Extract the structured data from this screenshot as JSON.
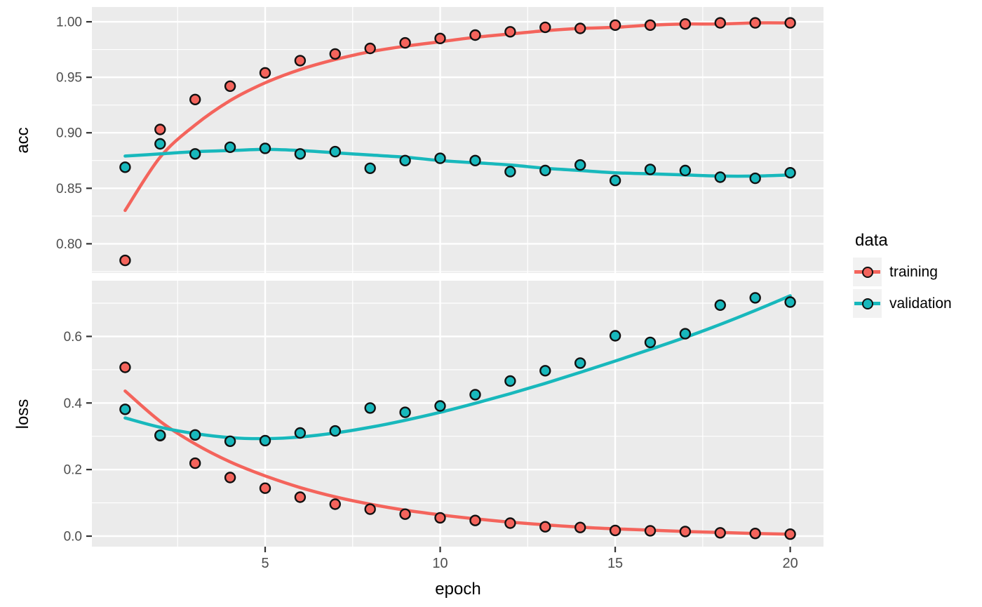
{
  "chart_data": {
    "type": "scatter",
    "description": "Keras-style training history: points with loess smooth lines, faceted into acc (top) and loss (bottom) panels",
    "xlabel": "epoch",
    "x": [
      1,
      2,
      3,
      4,
      5,
      6,
      7,
      8,
      9,
      10,
      11,
      12,
      13,
      14,
      15,
      16,
      17,
      18,
      19,
      20
    ],
    "x_domain": [
      0.05,
      20.95
    ],
    "x_ticks": {
      "values": [
        5,
        10,
        15,
        20
      ],
      "labels": [
        "5",
        "10",
        "15",
        "20"
      ]
    },
    "legend": {
      "title": "data",
      "position": "right",
      "entries": [
        {
          "name": "training",
          "label": "training",
          "color": "#F4645C"
        },
        {
          "name": "validation",
          "label": "validation",
          "color": "#18B8BC"
        }
      ]
    },
    "style": {
      "panel_bg": "#EBEBEB",
      "grid_color": "#FFFFFF",
      "tick_label_color": "#4D4D4D",
      "tick_mark_color": "#333333",
      "point_stroke": "#101010",
      "legend_key_bg": "#F2F2F2",
      "grid_on": true
    },
    "panels": [
      {
        "metric": "acc",
        "ylabel": "acc",
        "y_domain": [
          0.7737,
          1.0133
        ],
        "y_ticks": {
          "values": [
            0.8,
            0.85,
            0.9,
            0.95,
            1.0
          ],
          "labels": [
            "0.80",
            "0.85",
            "0.90",
            "0.95",
            "1.00"
          ]
        },
        "series": [
          {
            "name": "training",
            "points": [
              0.785,
              0.903,
              0.93,
              0.942,
              0.954,
              0.965,
              0.971,
              0.976,
              0.981,
              0.985,
              0.988,
              0.991,
              0.995,
              0.994,
              0.997,
              0.997,
              0.998,
              0.999,
              0.999,
              0.999
            ],
            "smooth": [
              0.83,
              0.878,
              0.907,
              0.929,
              0.945,
              0.957,
              0.966,
              0.973,
              0.978,
              0.982,
              0.986,
              0.989,
              0.992,
              0.994,
              0.995,
              0.997,
              0.998,
              0.998,
              0.999,
              0.999
            ]
          },
          {
            "name": "validation",
            "points": [
              0.869,
              0.89,
              0.881,
              0.887,
              0.886,
              0.881,
              0.883,
              0.868,
              0.875,
              0.877,
              0.875,
              0.865,
              0.866,
              0.871,
              0.857,
              0.867,
              0.866,
              0.86,
              0.859,
              0.864
            ],
            "smooth": [
              0.879,
              0.881,
              0.883,
              0.884,
              0.885,
              0.884,
              0.882,
              0.88,
              0.878,
              0.875,
              0.873,
              0.871,
              0.868,
              0.866,
              0.864,
              0.863,
              0.862,
              0.861,
              0.861,
              0.862
            ]
          }
        ]
      },
      {
        "metric": "loss",
        "ylabel": "loss",
        "y_domain": [
          -0.0316,
          0.7674
        ],
        "y_ticks": {
          "values": [
            0.0,
            0.2,
            0.4,
            0.6
          ],
          "labels": [
            "0.0",
            "0.2",
            "0.4",
            "0.6"
          ]
        },
        "series": [
          {
            "name": "training",
            "points": [
              0.507,
              0.302,
              0.219,
              0.176,
              0.144,
              0.117,
              0.096,
              0.081,
              0.066,
              0.055,
              0.047,
              0.039,
              0.028,
              0.026,
              0.017,
              0.016,
              0.014,
              0.01,
              0.008,
              0.006
            ],
            "smooth": [
              0.436,
              0.345,
              0.277,
              0.223,
              0.181,
              0.146,
              0.118,
              0.096,
              0.078,
              0.064,
              0.052,
              0.042,
              0.034,
              0.027,
              0.022,
              0.018,
              0.014,
              0.011,
              0.008,
              0.006
            ]
          },
          {
            "name": "validation",
            "points": [
              0.381,
              0.303,
              0.304,
              0.285,
              0.287,
              0.31,
              0.316,
              0.385,
              0.372,
              0.391,
              0.425,
              0.466,
              0.497,
              0.52,
              0.602,
              0.582,
              0.608,
              0.694,
              0.716,
              0.703
            ],
            "smooth": [
              0.355,
              0.327,
              0.308,
              0.296,
              0.293,
              0.298,
              0.31,
              0.327,
              0.348,
              0.372,
              0.399,
              0.428,
              0.459,
              0.492,
              0.526,
              0.561,
              0.597,
              0.636,
              0.678,
              0.722
            ]
          }
        ]
      }
    ]
  }
}
